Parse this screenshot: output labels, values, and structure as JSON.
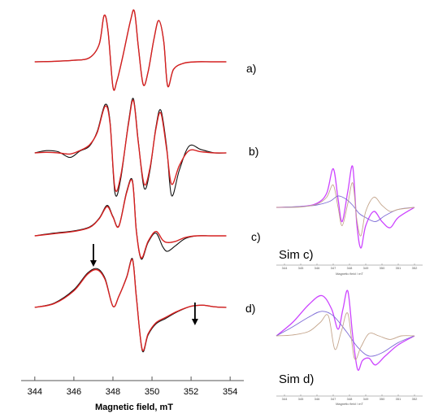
{
  "chart_data": [
    {
      "type": "line",
      "title": "",
      "xlabel": "Magnetic field, mT",
      "ylabel": "",
      "xlim": [
        343.3,
        354.7
      ],
      "xticks": [
        344,
        346,
        348,
        350,
        352,
        354
      ],
      "grid": false,
      "series_colors": {
        "experimental": "#111111",
        "simulated": "#d62020"
      },
      "panels": [
        {
          "label": "a)",
          "experimental": {
            "name": "",
            "x": [
              344.0,
              345.0,
              346.0,
              346.8,
              347.3,
              347.55,
              347.75,
              348.0,
              348.2,
              348.5,
              348.9,
              349.1,
              349.3,
              349.55,
              349.8,
              350.1,
              350.35,
              350.6,
              350.8,
              351.1,
              351.6,
              352.3,
              353.0,
              353.8
            ],
            "y": [
              0.0,
              0.01,
              0.03,
              0.08,
              0.35,
              0.92,
              0.6,
              -0.5,
              -0.38,
              0.1,
              0.82,
              1.0,
              0.3,
              -0.45,
              -0.2,
              0.45,
              0.82,
              0.4,
              -0.48,
              -0.15,
              -0.03,
              0.0,
              0.0,
              0.0
            ]
          },
          "simulated": {
            "name": "",
            "x": [
              344.0,
              345.0,
              346.0,
              346.8,
              347.3,
              347.55,
              347.75,
              348.0,
              348.2,
              348.5,
              348.9,
              349.1,
              349.3,
              349.55,
              349.8,
              350.1,
              350.35,
              350.6,
              350.8,
              351.1,
              351.6,
              352.3,
              353.0,
              353.8
            ],
            "y": [
              0.0,
              0.01,
              0.03,
              0.08,
              0.35,
              0.92,
              0.6,
              -0.5,
              -0.38,
              0.1,
              0.82,
              1.0,
              0.3,
              -0.45,
              -0.2,
              0.45,
              0.82,
              0.4,
              -0.48,
              -0.15,
              -0.03,
              0.0,
              0.0,
              0.0
            ]
          }
        },
        {
          "label": "b)",
          "experimental": {
            "name": "",
            "x": [
              344.0,
              344.6,
              345.2,
              345.8,
              346.3,
              346.8,
              347.2,
              347.6,
              347.85,
              348.1,
              348.4,
              348.8,
              349.05,
              349.3,
              349.6,
              349.9,
              350.2,
              350.45,
              350.75,
              351.0,
              351.4,
              351.9,
              352.5,
              353.2,
              353.8
            ],
            "y": [
              0.0,
              0.04,
              0.02,
              -0.08,
              0.03,
              0.12,
              0.38,
              0.85,
              0.55,
              -0.7,
              -0.45,
              0.55,
              0.95,
              0.2,
              -0.62,
              -0.3,
              0.45,
              0.75,
              0.1,
              -0.75,
              -0.3,
              0.12,
              0.06,
              0.0,
              0.0
            ]
          },
          "simulated": {
            "name": "",
            "x": [
              344.0,
              344.6,
              345.2,
              345.8,
              346.3,
              346.8,
              347.2,
              347.6,
              347.85,
              348.1,
              348.4,
              348.8,
              349.05,
              349.3,
              349.6,
              349.9,
              350.2,
              350.45,
              350.75,
              351.0,
              351.4,
              351.9,
              352.5,
              353.2,
              353.8
            ],
            "y": [
              0.0,
              0.01,
              0.0,
              -0.02,
              0.04,
              0.14,
              0.36,
              0.82,
              0.52,
              -0.62,
              -0.4,
              0.52,
              0.92,
              0.18,
              -0.55,
              -0.26,
              0.42,
              0.7,
              0.06,
              -0.55,
              -0.22,
              0.04,
              0.02,
              0.0,
              0.0
            ]
          }
        },
        {
          "label": "c)",
          "experimental": {
            "name": "",
            "x": [
              344.0,
              345.0,
              346.0,
              346.8,
              347.3,
              347.7,
              348.0,
              348.3,
              348.7,
              349.0,
              349.2,
              349.45,
              349.8,
              350.2,
              350.55,
              350.8,
              351.2,
              351.7,
              352.3,
              353.0,
              353.8
            ],
            "y": [
              0.0,
              0.05,
              0.09,
              0.16,
              0.32,
              0.55,
              0.35,
              0.18,
              0.8,
              1.0,
              0.1,
              -0.42,
              -0.12,
              0.05,
              -0.2,
              -0.28,
              -0.18,
              -0.05,
              0.0,
              0.0,
              0.0
            ]
          },
          "simulated": {
            "name": "",
            "x": [
              344.0,
              345.0,
              346.0,
              346.8,
              347.3,
              347.7,
              348.0,
              348.3,
              348.7,
              349.0,
              349.2,
              349.45,
              349.8,
              350.2,
              350.55,
              350.8,
              351.2,
              351.7,
              352.3,
              353.0,
              353.8
            ],
            "y": [
              0.0,
              0.04,
              0.08,
              0.15,
              0.31,
              0.53,
              0.34,
              0.17,
              0.78,
              0.98,
              0.08,
              -0.4,
              -0.1,
              0.08,
              -0.08,
              -0.12,
              -0.1,
              -0.03,
              0.0,
              0.0,
              0.0
            ]
          }
        },
        {
          "label": "d)",
          "experimental": {
            "name": "",
            "x": [
              344.0,
              345.0,
              346.0,
              346.7,
              347.2,
              347.6,
              348.0,
              348.3,
              348.7,
              349.0,
              349.2,
              349.5,
              349.8,
              350.2,
              350.7,
              351.3,
              352.0,
              352.6,
              353.2,
              353.8
            ],
            "y": [
              0.0,
              0.08,
              0.32,
              0.62,
              0.7,
              0.52,
              0.02,
              0.2,
              0.55,
              0.88,
              0.2,
              -0.78,
              -0.5,
              -0.3,
              -0.2,
              -0.08,
              0.02,
              0.04,
              0.01,
              0.0
            ]
          },
          "simulated": {
            "name": "",
            "x": [
              344.0,
              345.0,
              346.0,
              346.7,
              347.2,
              347.6,
              348.0,
              348.3,
              348.7,
              349.0,
              349.2,
              349.5,
              349.8,
              350.2,
              350.7,
              351.3,
              352.0,
              352.6,
              353.2,
              353.8
            ],
            "y": [
              0.0,
              0.07,
              0.3,
              0.6,
              0.68,
              0.5,
              0.02,
              0.2,
              0.54,
              0.86,
              0.18,
              -0.76,
              -0.48,
              -0.28,
              -0.18,
              -0.07,
              0.02,
              0.04,
              0.01,
              0.0
            ]
          },
          "arrows_at_field": [
            347.0,
            352.2
          ]
        }
      ]
    },
    {
      "type": "line",
      "title": "Sim c)",
      "xlabel": "Magnetic field / mT",
      "ylabel": "",
      "xlim": [
        343.5,
        352.5
      ],
      "xticks": [
        344,
        345,
        346,
        347,
        348,
        349,
        350,
        351,
        352
      ],
      "grid": false,
      "series_colors": [
        "#cc44ff",
        "#7d6bd6",
        "#c4a58c"
      ],
      "series": [
        {
          "name": "",
          "x": [
            343.5,
            345.0,
            346.0,
            346.6,
            347.0,
            347.3,
            347.55,
            347.9,
            348.2,
            348.45,
            348.7,
            349.0,
            349.5,
            350.0,
            350.5,
            351.0,
            352.0
          ],
          "y": [
            0.0,
            0.02,
            0.1,
            0.35,
            0.95,
            0.2,
            -0.35,
            0.4,
            1.0,
            -0.4,
            -1.0,
            -0.45,
            -0.1,
            -0.35,
            -0.5,
            -0.25,
            0.0
          ]
        },
        {
          "name": "",
          "x": [
            343.5,
            345.0,
            346.0,
            346.8,
            347.3,
            347.8,
            348.2,
            348.6,
            349.0,
            349.6,
            350.2,
            351.0,
            352.0
          ],
          "y": [
            0.0,
            0.02,
            0.06,
            0.15,
            0.28,
            0.2,
            0.05,
            -0.15,
            -0.25,
            -0.35,
            -0.2,
            -0.05,
            0.0
          ]
        },
        {
          "name": "",
          "x": [
            343.5,
            345.0,
            346.0,
            346.6,
            347.0,
            347.3,
            347.55,
            347.9,
            348.2,
            348.45,
            348.7,
            349.0,
            349.5,
            350.0,
            350.5,
            351.0,
            352.0
          ],
          "y": [
            0.0,
            0.01,
            0.08,
            0.25,
            0.55,
            0.0,
            -0.45,
            0.1,
            0.6,
            -0.3,
            -0.7,
            -0.1,
            0.25,
            0.05,
            -0.1,
            -0.05,
            0.0
          ]
        }
      ]
    },
    {
      "type": "line",
      "title": "Sim d)",
      "xlabel": "Magnetic field / mT",
      "ylabel": "",
      "xlim": [
        343.5,
        352.5
      ],
      "xticks": [
        344,
        345,
        346,
        347,
        348,
        349,
        350,
        351,
        352
      ],
      "grid": false,
      "series_colors": [
        "#cc44ff",
        "#7d6bd6",
        "#c4a58c"
      ],
      "series": [
        {
          "name": "",
          "x": [
            343.5,
            344.5,
            345.5,
            346.3,
            346.9,
            347.3,
            347.6,
            347.9,
            348.2,
            348.5,
            348.8,
            349.2,
            349.6,
            350.2,
            351.0,
            352.0
          ],
          "y": [
            0.0,
            0.3,
            0.7,
            0.9,
            0.6,
            0.15,
            0.6,
            1.0,
            0.0,
            -0.75,
            -0.55,
            -0.5,
            -0.65,
            -0.45,
            -0.2,
            0.0
          ]
        },
        {
          "name": "",
          "x": [
            343.5,
            344.5,
            345.5,
            346.3,
            347.0,
            347.8,
            348.5,
            349.2,
            350.0,
            351.0,
            352.0
          ],
          "y": [
            0.0,
            0.2,
            0.42,
            0.55,
            0.45,
            0.1,
            -0.25,
            -0.45,
            -0.38,
            -0.15,
            0.0
          ]
        },
        {
          "name": "",
          "x": [
            343.5,
            344.5,
            345.5,
            346.2,
            346.7,
            347.1,
            347.5,
            347.9,
            348.3,
            348.7,
            349.2,
            349.8,
            350.5,
            351.2,
            352.0
          ],
          "y": [
            0.0,
            0.02,
            0.1,
            0.3,
            0.45,
            -0.3,
            0.1,
            0.5,
            -0.5,
            -0.25,
            0.05,
            0.0,
            -0.08,
            0.0,
            0.0
          ]
        }
      ]
    }
  ]
}
